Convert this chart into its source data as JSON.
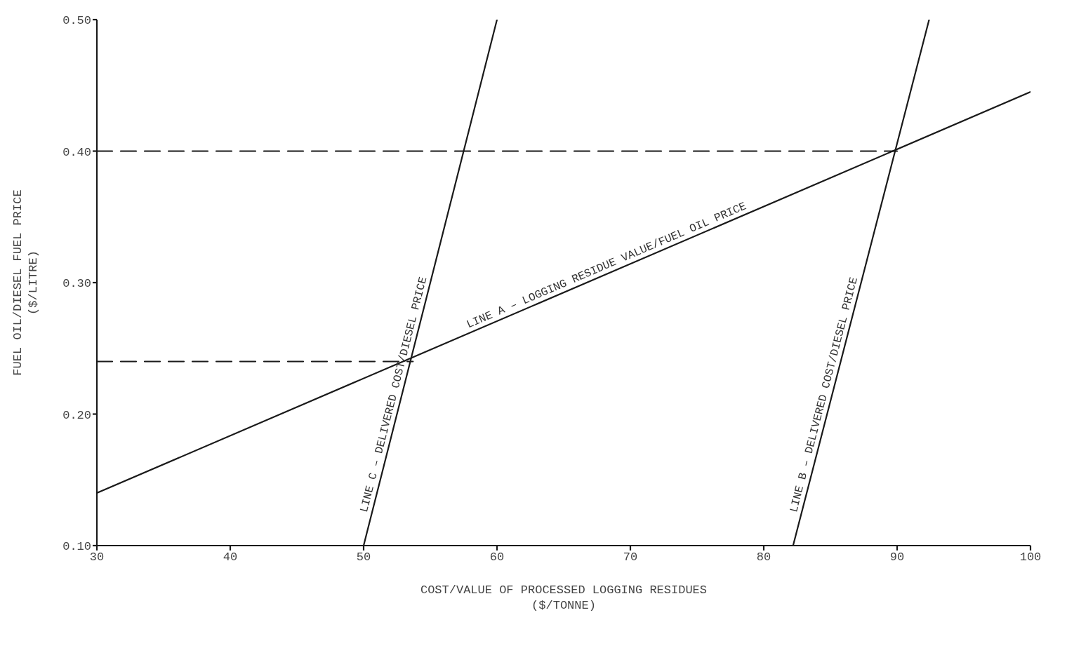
{
  "chart_data": {
    "type": "line",
    "xlabel": "COST/VALUE OF PROCESSED LOGGING RESIDUES\n($/TONNE)",
    "ylabel": "FUEL OIL/DIESEL FUEL PRICE\n($/LITRE)",
    "xlim": [
      30,
      100
    ],
    "xticks": [
      30,
      40,
      50,
      60,
      70,
      80,
      90,
      100
    ],
    "ylim": [
      0.1,
      0.5
    ],
    "yticks": [
      {
        "value": 0.1,
        "label": "0.10"
      },
      {
        "value": 0.2,
        "label": "0.20"
      },
      {
        "value": 0.3,
        "label": "0.30"
      },
      {
        "value": 0.4,
        "label": "0.40"
      },
      {
        "value": 0.5,
        "label": "0.50"
      }
    ],
    "marker": "none",
    "line_style": "solid",
    "series": [
      {
        "name": "LINE A – LOGGING RESIDUE VALUE/FUEL OIL PRICE",
        "color": "#1a1a1a",
        "x": [
          30,
          100
        ],
        "values": [
          0.14,
          0.445
        ]
      },
      {
        "name": "LINE B – DELIVERED COST/DIESEL PRICE",
        "color": "#1a1a1a",
        "x": [
          82.2,
          92.4
        ],
        "values": [
          0.1,
          0.5
        ]
      },
      {
        "name": "LINE C – DELIVERED COST/DIESEL PRICE",
        "color": "#1a1a1a",
        "x": [
          50,
          60
        ],
        "values": [
          0.1,
          0.5
        ]
      },
      {
        "color": "#1a1a1a",
        "line_style": "dashed",
        "x": [
          30,
          90
        ],
        "values": [
          0.4,
          0.4
        ]
      },
      {
        "color": "#1a1a1a",
        "line_style": "dashed",
        "x": [
          30,
          53.7
        ],
        "values": [
          0.24,
          0.24
        ]
      }
    ]
  }
}
